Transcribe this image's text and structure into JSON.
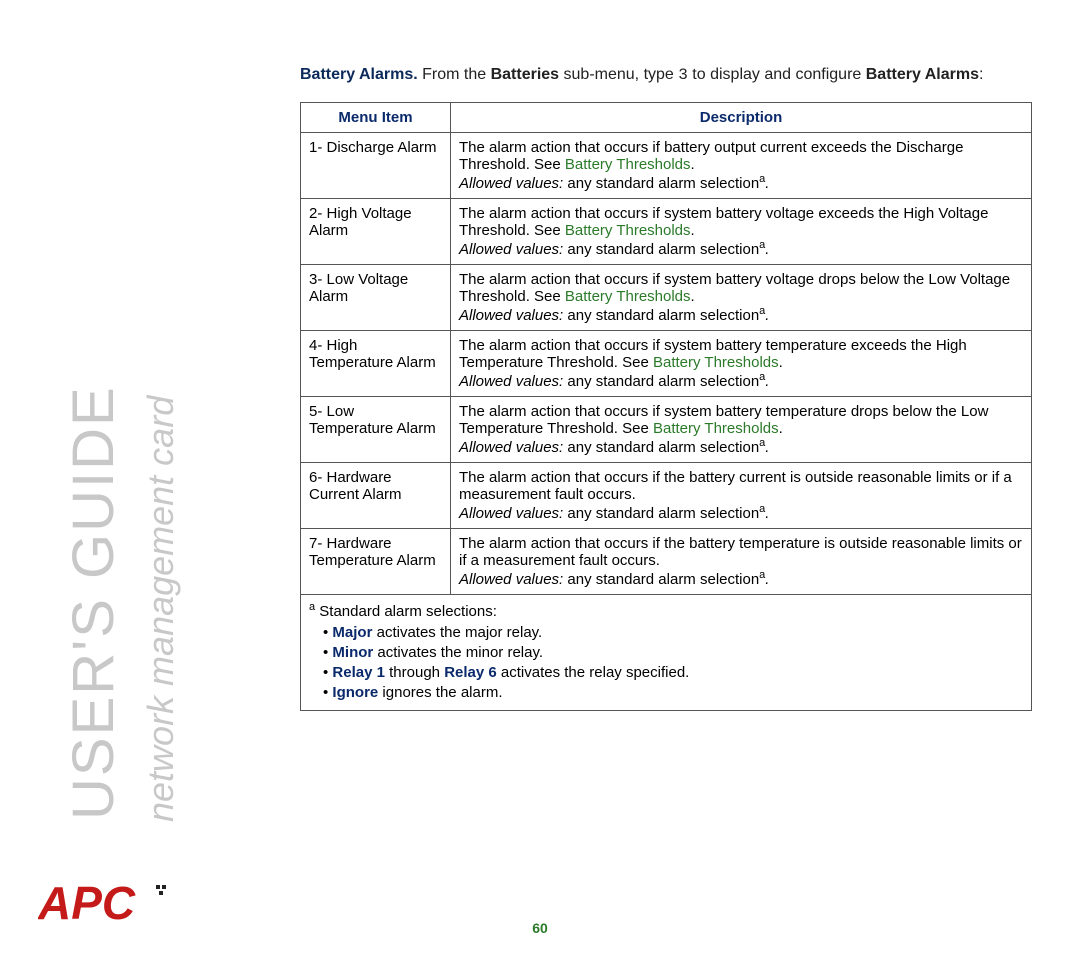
{
  "sidebar": {
    "guide_text": "USER'S GUIDE",
    "subtitle_text": "network management card",
    "logo_text": "APC",
    "logo_color_primary": "#c51a1a",
    "logo_color_secondary": "#222222"
  },
  "page_number": "60",
  "intro": {
    "section_label": "Battery Alarms.",
    "text_1": " From the ",
    "bold_1": "Batteries",
    "text_2": " sub-menu, type ",
    "mono_1": "3",
    "text_3": " to display and configure ",
    "bold_2": "Battery Alarms",
    "text_4": ":"
  },
  "table": {
    "headers": {
      "menu": "Menu Item",
      "desc": "Description"
    },
    "link_text": "Battery Thresholds",
    "link_color": "#2a7a2a",
    "header_color": "#0b2a6b",
    "allowed_label": "Allowed values:",
    "allowed_text": " any standard alarm selection",
    "allowed_sup": "a",
    "rows": [
      {
        "menu": "1- Discharge Alarm",
        "desc": "The alarm action that occurs if battery output current exceeds the Discharge Threshold. See ",
        "has_link": true
      },
      {
        "menu": "2- High Voltage Alarm",
        "desc": "The alarm action that occurs if system battery voltage exceeds the High Voltage Threshold. See ",
        "has_link": true
      },
      {
        "menu": "3- Low Voltage Alarm",
        "desc": "The alarm action that occurs if system battery voltage drops below the Low Voltage Threshold. See ",
        "has_link": true
      },
      {
        "menu": "4- High Temperature Alarm",
        "desc": "The alarm action that occurs if system battery temperature exceeds the High Temperature Threshold. See ",
        "has_link": true
      },
      {
        "menu": "5- Low Temperature Alarm",
        "desc": "The alarm action that occurs if system battery temperature drops below the Low Temperature Threshold. See ",
        "has_link": true
      },
      {
        "menu": "6- Hardware Current Alarm",
        "desc": "The alarm action that occurs if the battery current is outside reasonable limits or if a measurement fault occurs.",
        "has_link": false
      },
      {
        "menu": "7- Hardware Temperature Alarm",
        "desc": "The alarm action that occurs if the battery temperature is outside reasonable limits or if a measurement fault occurs.",
        "has_link": false
      }
    ],
    "footnote": {
      "sup": "a",
      "lead": " Standard alarm selections:",
      "items": [
        {
          "bold": "Major",
          "rest": " activates the major relay."
        },
        {
          "bold": "Minor",
          "rest": " activates the minor relay."
        },
        {
          "bold": "Relay 1",
          "mid": " through ",
          "bold2": "Relay 6",
          "rest": " activates the relay specified."
        },
        {
          "bold": "Ignore",
          "rest": " ignores the alarm."
        }
      ]
    }
  }
}
